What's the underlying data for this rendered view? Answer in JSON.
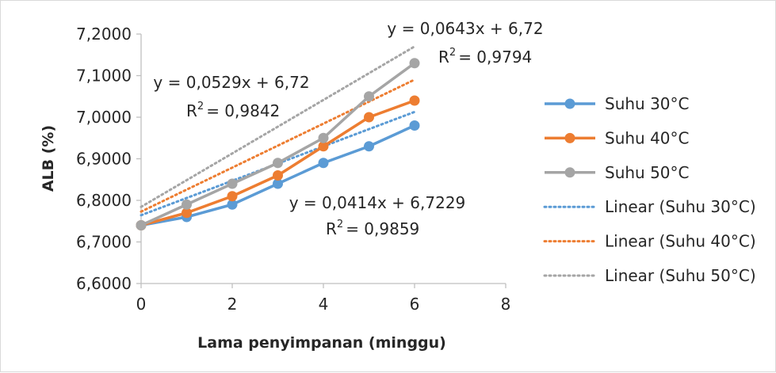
{
  "chart_data": {
    "type": "line",
    "title": "",
    "xlabel": "Lama penyimpanan (minggu)",
    "ylabel": "ALB (%)",
    "xlim": [
      0,
      8
    ],
    "ylim": [
      6.6,
      7.2
    ],
    "x_ticks": [
      "0",
      "2",
      "4",
      "6",
      "8"
    ],
    "y_ticks": [
      "6,6000",
      "6,7000",
      "6,8000",
      "6,9000",
      "7,0000",
      "7,1000",
      "7,2000"
    ],
    "x": [
      0,
      1,
      2,
      3,
      4,
      5,
      6
    ],
    "grid": false,
    "legend_position": "right",
    "series": [
      {
        "name": "Suhu 30°C",
        "color": "#5b9bd5",
        "values": [
          6.74,
          6.76,
          6.79,
          6.84,
          6.89,
          6.93,
          6.98
        ]
      },
      {
        "name": "Suhu 40°C",
        "color": "#ed7d31",
        "values": [
          6.74,
          6.77,
          6.81,
          6.86,
          6.93,
          7.0,
          7.04
        ]
      },
      {
        "name": "Suhu 50°C",
        "color": "#a5a5a5",
        "values": [
          6.74,
          6.79,
          6.84,
          6.89,
          6.95,
          7.05,
          7.13
        ]
      }
    ],
    "trendlines": [
      {
        "name": "Linear (Suhu 30°C)",
        "color": "#5b9bd5",
        "slope": 0.0414,
        "intercept": 6.7229
      },
      {
        "name": "Linear (Suhu 40°C)",
        "color": "#ed7d31",
        "slope": 0.0529,
        "intercept": 6.72
      },
      {
        "name": "Linear (Suhu 50°C)",
        "color": "#a5a5a5",
        "slope": 0.0643,
        "intercept": 6.72
      }
    ],
    "annotations": [
      {
        "eq": "y = 0,0643x + 6,72",
        "r2": "= 0,9794"
      },
      {
        "eq": "y = 0,0529x + 6,72",
        "r2": "= 0,9842"
      },
      {
        "eq": "y = 0,0414x + 6,7229",
        "r2": "= 0,9859"
      }
    ],
    "r2_label": "R",
    "r2_sup": "2"
  }
}
